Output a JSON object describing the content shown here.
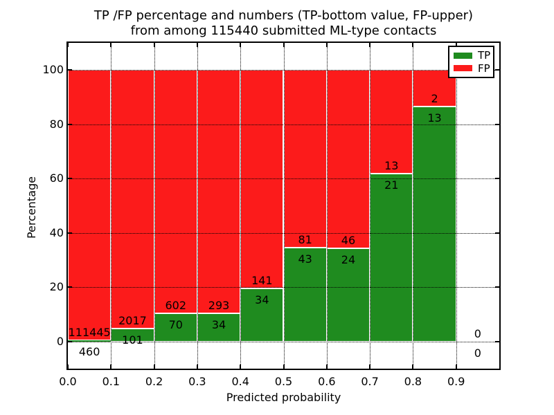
{
  "chart_data": {
    "type": "bar",
    "stacked": true,
    "title_line1": "TP /FP percentage and numbers (TP-bottom value, FP-upper)",
    "title_line2": "from among 115440 submitted ML-type contacts",
    "xlabel": "Predicted probability",
    "ylabel": "Percentage",
    "xlim": [
      0,
      1.0
    ],
    "ylim": [
      -10,
      110
    ],
    "grid": "dotted",
    "x_bin_edges": [
      0.0,
      0.1,
      0.2,
      0.3,
      0.4,
      0.5,
      0.6,
      0.7,
      0.8,
      0.9,
      1.0
    ],
    "x_ticks": [
      0.0,
      0.1,
      0.2,
      0.3,
      0.4,
      0.5,
      0.6,
      0.7,
      0.8,
      0.9
    ],
    "x_tick_labels": [
      "0.0",
      "0.1",
      "0.2",
      "0.3",
      "0.4",
      "0.5",
      "0.6",
      "0.7",
      "0.8",
      "0.9"
    ],
    "y_ticks": [
      0,
      20,
      40,
      60,
      80,
      100
    ],
    "series": [
      {
        "name": "TP",
        "color": "#1f8b1f",
        "counts": [
          460,
          101,
          70,
          34,
          34,
          43,
          24,
          21,
          13,
          0
        ]
      },
      {
        "name": "FP",
        "color": "#fc1b1b",
        "counts": [
          111445,
          2017,
          602,
          293,
          141,
          81,
          46,
          13,
          2,
          0
        ]
      }
    ],
    "tp_percent": [
      0.41,
      4.77,
      10.42,
      10.4,
      19.43,
      34.68,
      34.29,
      61.76,
      86.67,
      0
    ],
    "legend": {
      "position": "upper right",
      "entries": [
        "TP",
        "FP"
      ]
    }
  }
}
